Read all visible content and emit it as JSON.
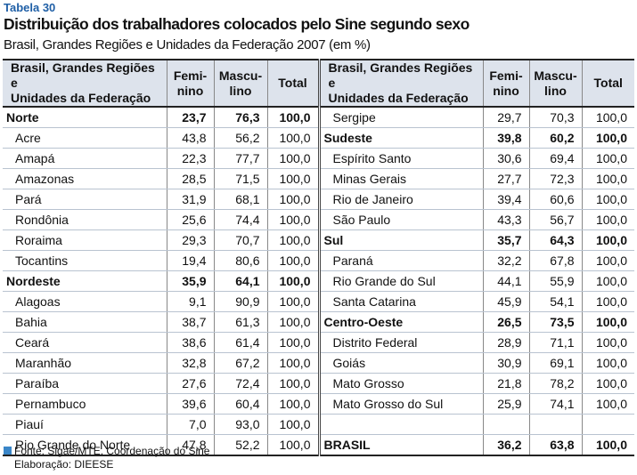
{
  "header": {
    "label": "Tabela 30",
    "title": "Distribuição dos trabalhadores colocados pelo Sine segundo sexo",
    "subtitle": "Brasil, Grandes Regiões e Unidades da Federação 2007 (em %)"
  },
  "table": {
    "columns": {
      "name": [
        "Brasil, Grandes Regiões e",
        "Unidades da Federação"
      ],
      "feminino": [
        "Femi-",
        "nino"
      ],
      "masculino": [
        "Mascu-",
        "lino"
      ],
      "total": [
        "Total"
      ]
    },
    "left": [
      {
        "name": "Norte",
        "feminino": "23,7",
        "masculino": "76,3",
        "total": "100,0",
        "bold": true
      },
      {
        "name": "Acre",
        "feminino": "43,8",
        "masculino": "56,2",
        "total": "100,0"
      },
      {
        "name": "Amapá",
        "feminino": "22,3",
        "masculino": "77,7",
        "total": "100,0"
      },
      {
        "name": "Amazonas",
        "feminino": "28,5",
        "masculino": "71,5",
        "total": "100,0"
      },
      {
        "name": "Pará",
        "feminino": "31,9",
        "masculino": "68,1",
        "total": "100,0"
      },
      {
        "name": "Rondônia",
        "feminino": "25,6",
        "masculino": "74,4",
        "total": "100,0"
      },
      {
        "name": "Roraima",
        "feminino": "29,3",
        "masculino": "70,7",
        "total": "100,0"
      },
      {
        "name": "Tocantins",
        "feminino": "19,4",
        "masculino": "80,6",
        "total": "100,0"
      },
      {
        "name": "Nordeste",
        "feminino": "35,9",
        "masculino": "64,1",
        "total": "100,0",
        "bold": true
      },
      {
        "name": "Alagoas",
        "feminino": "9,1",
        "masculino": "90,9",
        "total": "100,0"
      },
      {
        "name": "Bahia",
        "feminino": "38,7",
        "masculino": "61,3",
        "total": "100,0"
      },
      {
        "name": "Ceará",
        "feminino": "38,6",
        "masculino": "61,4",
        "total": "100,0"
      },
      {
        "name": "Maranhão",
        "feminino": "32,8",
        "masculino": "67,2",
        "total": "100,0"
      },
      {
        "name": "Paraíba",
        "feminino": "27,6",
        "masculino": "72,4",
        "total": "100,0"
      },
      {
        "name": "Pernambuco",
        "feminino": "39,6",
        "masculino": "60,4",
        "total": "100,0"
      },
      {
        "name": "Piauí",
        "feminino": "7,0",
        "masculino": "93,0",
        "total": "100,0"
      },
      {
        "name": "Rio Grande do Norte",
        "feminino": "47,8",
        "masculino": "52,2",
        "total": "100,0"
      }
    ],
    "right": [
      {
        "name": "Sergipe",
        "feminino": "29,7",
        "masculino": "70,3",
        "total": "100,0"
      },
      {
        "name": "Sudeste",
        "feminino": "39,8",
        "masculino": "60,2",
        "total": "100,0",
        "bold": true
      },
      {
        "name": "Espírito Santo",
        "feminino": "30,6",
        "masculino": "69,4",
        "total": "100,0"
      },
      {
        "name": "Minas Gerais",
        "feminino": "27,7",
        "masculino": "72,3",
        "total": "100,0"
      },
      {
        "name": "Rio de Janeiro",
        "feminino": "39,4",
        "masculino": "60,6",
        "total": "100,0"
      },
      {
        "name": "São Paulo",
        "feminino": "43,3",
        "masculino": "56,7",
        "total": "100,0"
      },
      {
        "name": "Sul",
        "feminino": "35,7",
        "masculino": "64,3",
        "total": "100,0",
        "bold": true
      },
      {
        "name": "Paraná",
        "feminino": "32,2",
        "masculino": "67,8",
        "total": "100,0"
      },
      {
        "name": "Rio Grande do Sul",
        "feminino": "44,1",
        "masculino": "55,9",
        "total": "100,0"
      },
      {
        "name": "Santa Catarina",
        "feminino": "45,9",
        "masculino": "54,1",
        "total": "100,0"
      },
      {
        "name": "Centro-Oeste",
        "feminino": "26,5",
        "masculino": "73,5",
        "total": "100,0",
        "bold": true
      },
      {
        "name": "Distrito Federal",
        "feminino": "28,9",
        "masculino": "71,1",
        "total": "100,0"
      },
      {
        "name": "Goiás",
        "feminino": "30,9",
        "masculino": "69,1",
        "total": "100,0"
      },
      {
        "name": "Mato Grosso",
        "feminino": "21,8",
        "masculino": "78,2",
        "total": "100,0"
      },
      {
        "name": "Mato Grosso do Sul",
        "feminino": "25,9",
        "masculino": "74,1",
        "total": "100,0"
      },
      null,
      {
        "name": "BRASIL",
        "feminino": "36,2",
        "masculino": "63,8",
        "total": "100,0",
        "bold": true
      }
    ]
  },
  "footer": {
    "source": "Fonte: Sigae/MTE. Coordenação do Sine",
    "credit": "Elaboração: DIEESE"
  }
}
